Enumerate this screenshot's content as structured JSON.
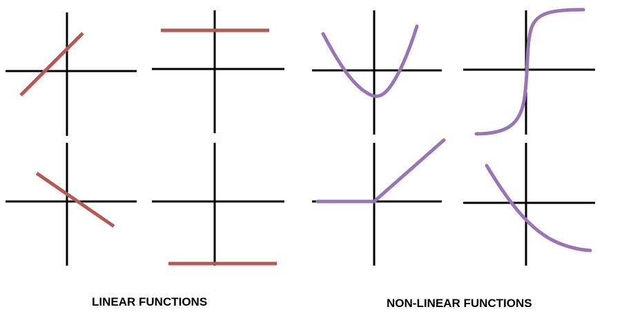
{
  "captions": {
    "linear": "LINEAR FUNCTIONS",
    "nonlinear": "NON-LINEAR FUNCTIONS"
  },
  "colors": {
    "linear": "#b35a55",
    "nonlinear": "#9a75b5",
    "axis": "#000000"
  },
  "graphs": [
    {
      "group": "linear",
      "shape": "increasing-line"
    },
    {
      "group": "linear",
      "shape": "constant-line-above"
    },
    {
      "group": "linear",
      "shape": "decreasing-line"
    },
    {
      "group": "linear",
      "shape": "constant-line-below"
    },
    {
      "group": "nonlinear",
      "shape": "parabola"
    },
    {
      "group": "nonlinear",
      "shape": "s-curve"
    },
    {
      "group": "nonlinear",
      "shape": "relu-hinge"
    },
    {
      "group": "nonlinear",
      "shape": "decaying-curve"
    }
  ]
}
